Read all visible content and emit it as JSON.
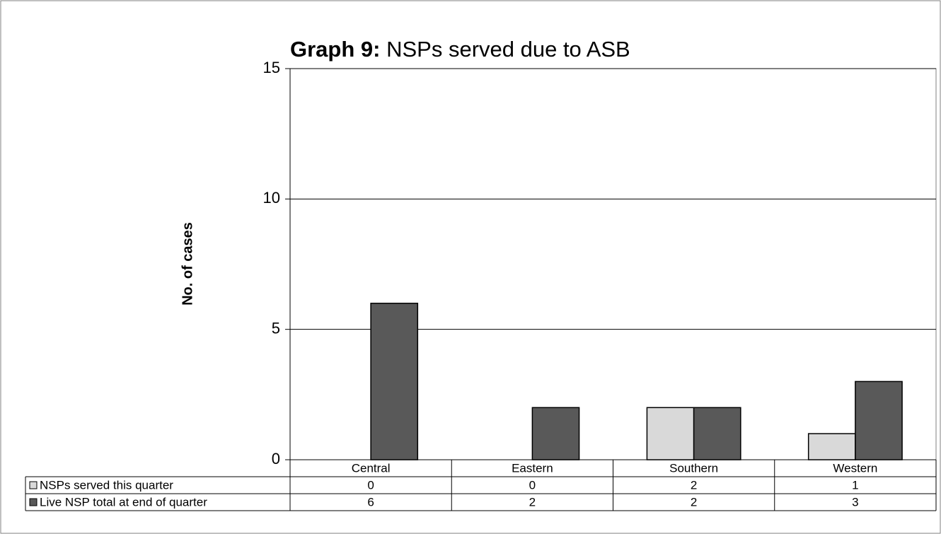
{
  "chart_data": {
    "type": "bar",
    "title": [
      "Graph 9:",
      "NSPs served due to ASB"
    ],
    "y_label": "No. of cases",
    "categories": [
      "Central",
      "Eastern",
      "Southern",
      "Western"
    ],
    "series": [
      {
        "name": "NSPs served this quarter",
        "color": "#d9d9d9",
        "values": [
          0,
          0,
          2,
          1
        ]
      },
      {
        "name": "Live NSP total at end of quarter",
        "color": "#595959",
        "values": [
          6,
          2,
          2,
          3
        ]
      }
    ],
    "ylim": [
      0,
      15
    ],
    "yticks": [
      0,
      5,
      10,
      15
    ],
    "grid": true
  }
}
